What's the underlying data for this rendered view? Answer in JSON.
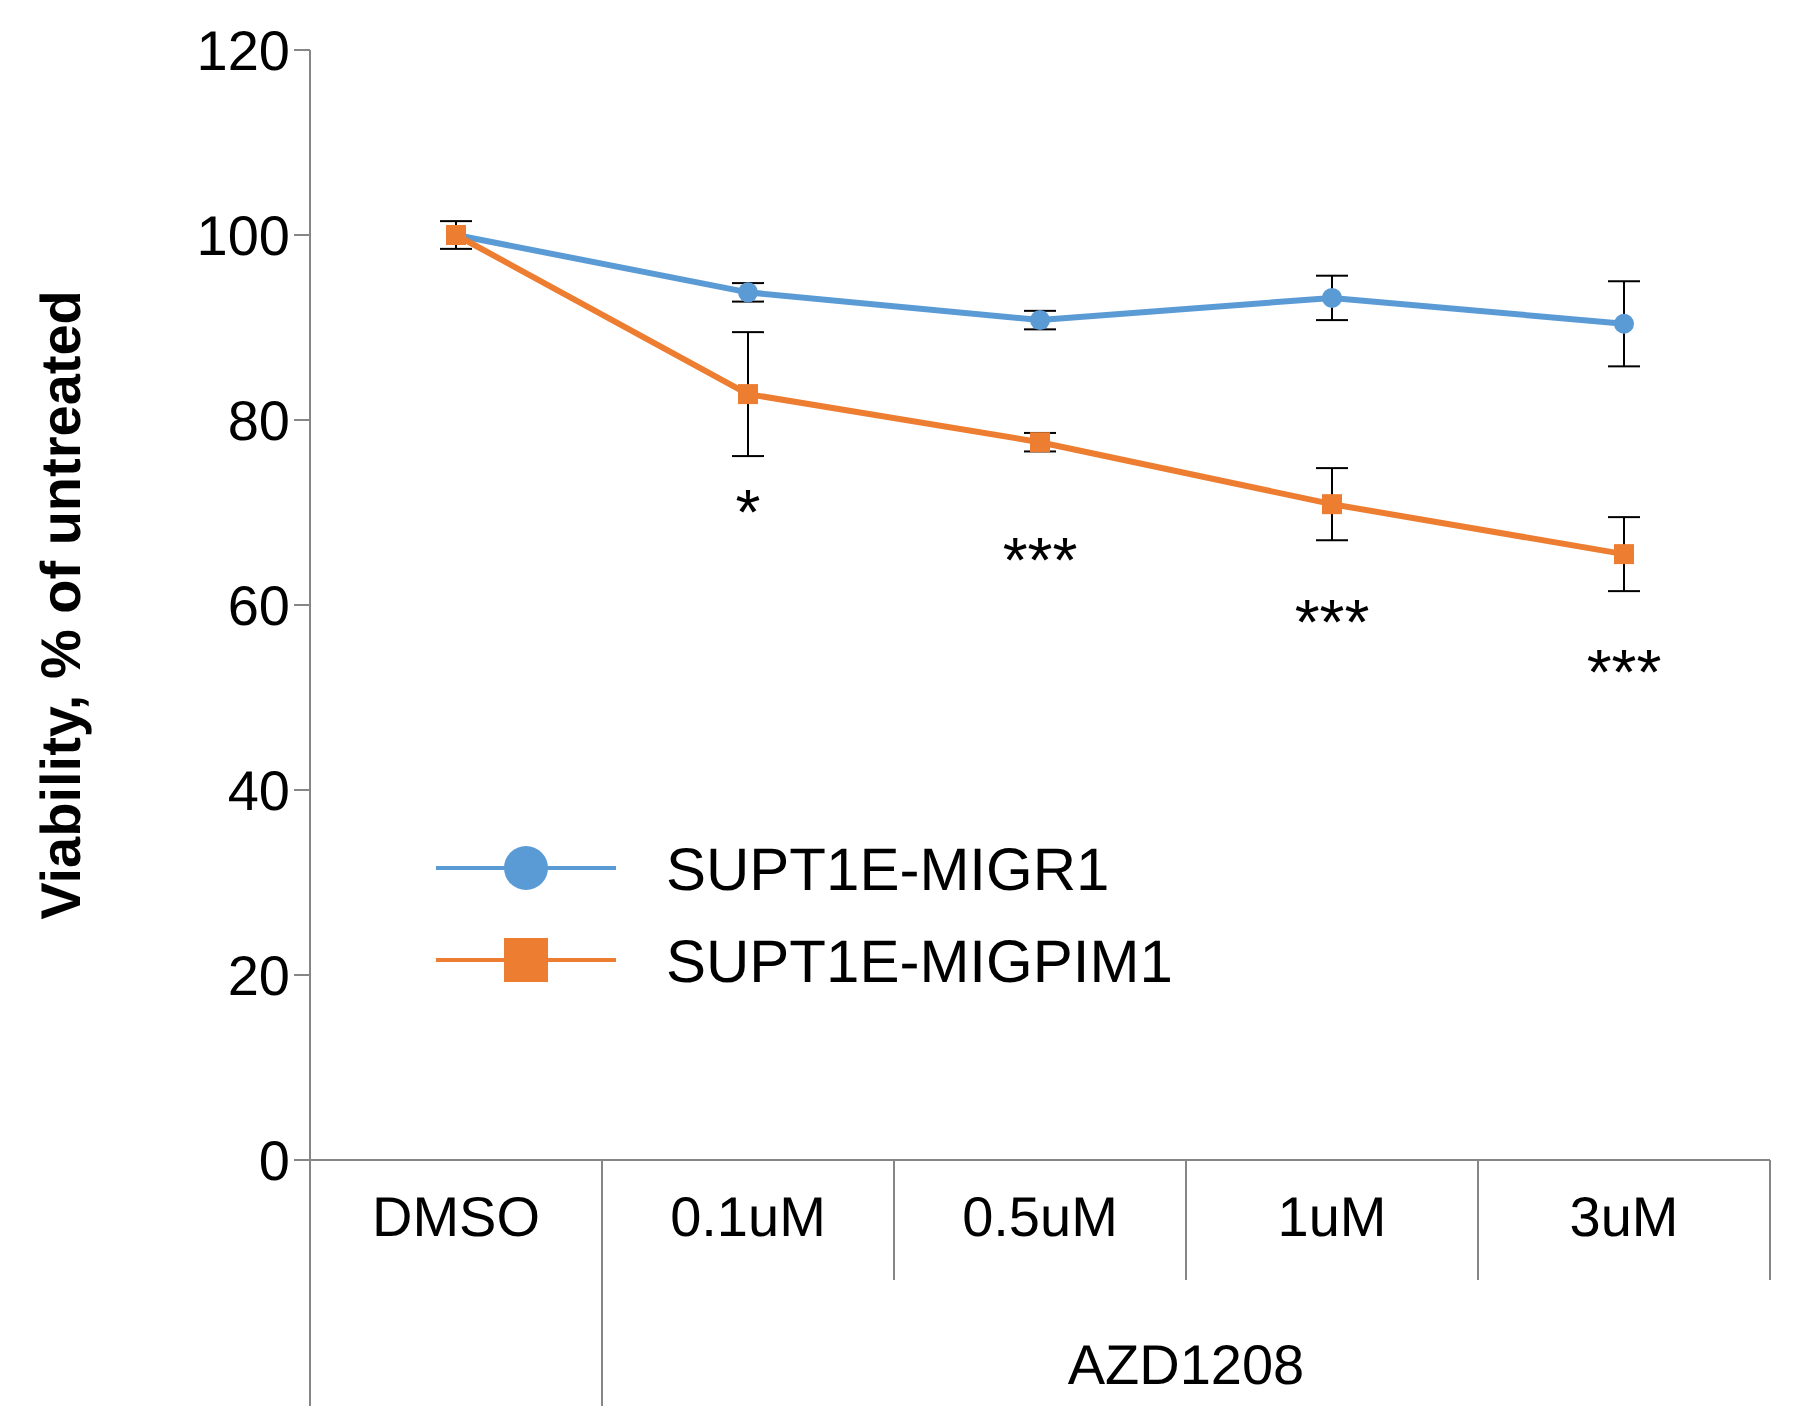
{
  "chart_data": {
    "type": "line",
    "ylabel": "Viability, % of untreated",
    "xlabel": "AZD1208",
    "categories": [
      "DMSO",
      "0.1uM",
      "0.5uM",
      "1uM",
      "3uM"
    ],
    "series": [
      {
        "name": "SUPT1E-MIGR1",
        "color": "#5b9bd5",
        "marker": "circle",
        "values": [
          100,
          93.8,
          90.8,
          93.2,
          90.4
        ],
        "errors": [
          null,
          1,
          1,
          2.4,
          4.6
        ]
      },
      {
        "name": "SUPT1E-MIGPIM1",
        "color": "#ed7d31",
        "marker": "square",
        "values": [
          100,
          82.8,
          77.6,
          70.9,
          65.5
        ],
        "errors": [
          1.5,
          6.7,
          1,
          3.9,
          4
        ]
      }
    ],
    "ylim": [
      0,
      120
    ],
    "yticks": [
      0,
      20,
      40,
      60,
      80,
      100,
      120
    ],
    "grid": false,
    "legend": "left",
    "annotations": [
      {
        "text": "*",
        "x": "0.1uM",
        "y": 82.8
      },
      {
        "text": "***",
        "x": "0.5uM",
        "y": 77.6
      },
      {
        "text": "***",
        "x": "1uM",
        "y": 70.9
      },
      {
        "text": "***",
        "x": "3uM",
        "y": 65.5
      }
    ]
  }
}
